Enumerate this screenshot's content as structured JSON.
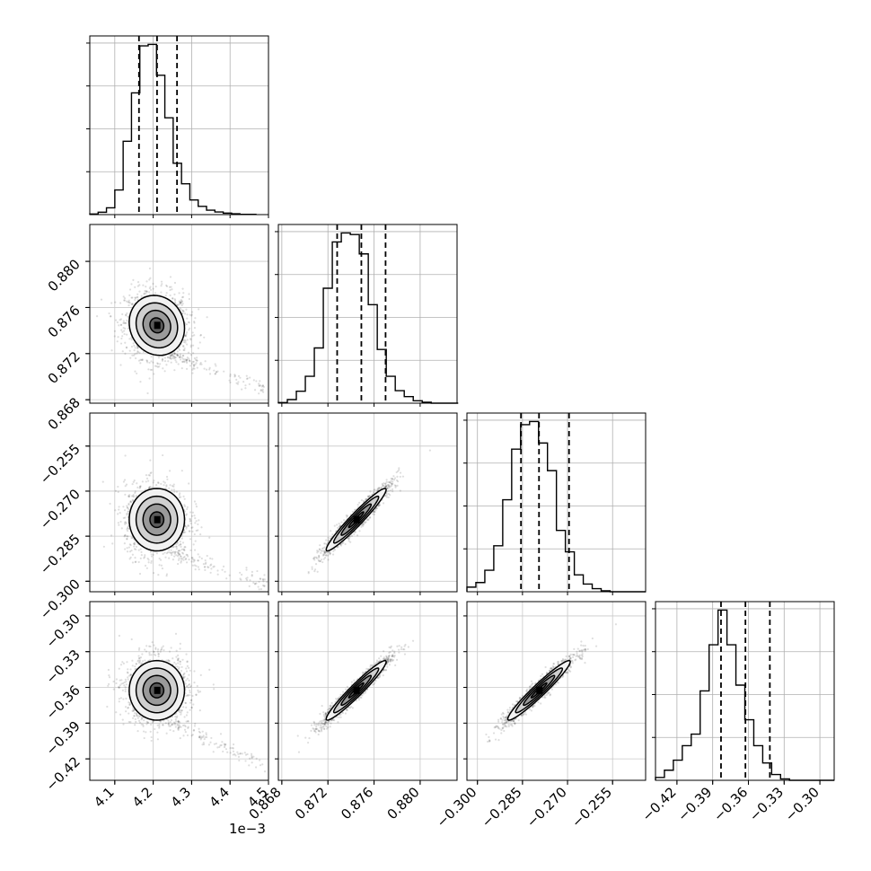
{
  "chart_data": {
    "type": "corner",
    "title": "",
    "grid": true,
    "parameters": [
      {
        "index": 0,
        "range": [
          4.035,
          4.5
        ],
        "ticks": [
          4.1,
          4.2,
          4.3,
          4.4,
          4.5
        ],
        "tick_labels": [
          "4.1",
          "4.2",
          "4.3",
          "4.4",
          "4.5"
        ],
        "offset_text": "1e−3"
      },
      {
        "index": 1,
        "range": [
          0.8677,
          0.8832
        ],
        "ticks": [
          0.868,
          0.872,
          0.876,
          0.88
        ],
        "tick_labels": [
          "0.868",
          "0.872",
          "0.876",
          "0.880"
        ]
      },
      {
        "index": 2,
        "range": [
          -0.3035,
          -0.244
        ],
        "ticks": [
          -0.3,
          -0.285,
          -0.27,
          -0.255
        ],
        "tick_labels": [
          "−0.300",
          "−0.285",
          "−0.270",
          "−0.255"
        ]
      },
      {
        "index": 3,
        "range": [
          -0.438,
          -0.288
        ],
        "ticks": [
          -0.42,
          -0.39,
          -0.36,
          -0.33,
          -0.3
        ],
        "tick_labels": [
          "−0.42",
          "−0.39",
          "−0.36",
          "−0.33",
          "−0.30"
        ]
      }
    ],
    "histograms": [
      {
        "param": 0,
        "edges_start": 4.035,
        "bin_width": 0.0217,
        "counts": [
          2,
          8,
          23,
          84,
          250,
          415,
          575,
          580,
          475,
          330,
          175,
          105,
          50,
          28,
          15,
          9,
          5,
          3,
          1,
          1
        ],
        "quantiles": [
          4.163,
          4.21,
          4.262
        ]
      },
      {
        "param": 1,
        "edges_start": 0.8677,
        "bin_width": 0.00078,
        "counts": [
          2,
          12,
          40,
          90,
          185,
          385,
          540,
          570,
          565,
          500,
          330,
          180,
          90,
          42,
          22,
          8,
          3,
          0,
          0,
          0
        ],
        "quantiles": [
          0.8728,
          0.8749,
          0.877
        ]
      },
      {
        "param": 2,
        "edges_start": -0.3035,
        "bin_width": 0.00298,
        "counts": [
          15,
          30,
          70,
          150,
          300,
          465,
          545,
          555,
          485,
          395,
          200,
          130,
          55,
          25,
          10,
          3,
          0,
          0,
          0,
          0
        ],
        "quantiles": [
          -0.2855,
          -0.2795,
          -0.2695
        ]
      },
      {
        "param": 3,
        "edges_start": -0.438,
        "bin_width": 0.0075,
        "counts": [
          10,
          35,
          70,
          120,
          160,
          310,
          470,
          590,
          470,
          330,
          210,
          120,
          60,
          20,
          5,
          0,
          0,
          0,
          0,
          0
        ],
        "quantiles": [
          -0.383,
          -0.3625,
          -0.342
        ]
      }
    ],
    "joint_panels": [
      {
        "x_param": 0,
        "y_param": 1,
        "mean": [
          4.2095,
          0.87445
        ],
        "std": [
          0.036,
          0.0013
        ],
        "corr": -0.1,
        "tail": {
          "from": [
            4.25,
            0.8718
          ],
          "to": [
            4.5,
            0.8688
          ]
        }
      },
      {
        "x_param": 0,
        "y_param": 2,
        "mean": [
          4.2095,
          -0.2795
        ],
        "std": [
          0.036,
          0.0052
        ],
        "corr": 0.0,
        "tail": {
          "from": [
            4.25,
            -0.2905
          ],
          "to": [
            4.5,
            -0.301
          ]
        }
      },
      {
        "x_param": 1,
        "y_param": 2,
        "mean": [
          0.87445,
          -0.2795
        ],
        "std": [
          0.0013,
          0.0052
        ],
        "corr": 0.96
      },
      {
        "x_param": 0,
        "y_param": 3,
        "mean": [
          4.2095,
          -0.3625
        ],
        "std": [
          0.036,
          0.0125
        ],
        "corr": 0.0,
        "tail": {
          "from": [
            4.25,
            -0.389
          ],
          "to": [
            4.5,
            -0.428
          ]
        }
      },
      {
        "x_param": 1,
        "y_param": 3,
        "mean": [
          0.87445,
          -0.3625
        ],
        "std": [
          0.0013,
          0.0125
        ],
        "corr": 0.96
      },
      {
        "x_param": 2,
        "y_param": 3,
        "mean": [
          -0.2795,
          -0.3625
        ],
        "std": [
          0.0052,
          0.0125
        ],
        "corr": 0.96
      }
    ],
    "contour_levels_sigma": [
      0.5,
      1.0,
      1.5,
      2.0
    ]
  }
}
